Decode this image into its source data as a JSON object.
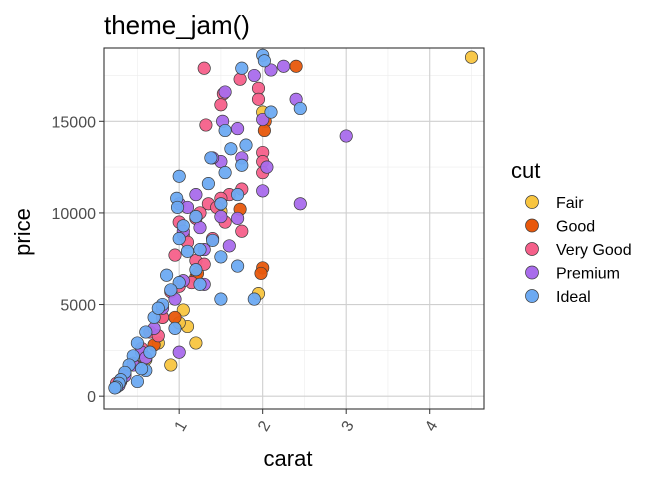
{
  "chart_data": {
    "type": "scatter",
    "title": "theme_jam()",
    "xlabel": "carat",
    "ylabel": "price",
    "xlim": [
      0.1,
      4.65
    ],
    "ylim": [
      -700,
      19000
    ],
    "x_ticks": [
      1,
      2,
      3,
      4
    ],
    "x_tick_labels": [
      "1",
      "2",
      "3",
      "4"
    ],
    "y_ticks": [
      0,
      5000,
      10000,
      15000
    ],
    "y_tick_labels": [
      "0",
      "5000",
      "10000",
      "15000"
    ],
    "grid": true,
    "legend": {
      "title": "cut",
      "position": "right"
    },
    "series": [
      {
        "name": "Fair",
        "color": "#F8C540",
        "points": [
          [
            4.5,
            18500
          ],
          [
            2.0,
            15500
          ],
          [
            1.95,
            5600
          ],
          [
            1.2,
            2900
          ],
          [
            0.9,
            1700
          ],
          [
            1.05,
            4700
          ],
          [
            1.1,
            3800
          ],
          [
            1.5,
            10100
          ],
          [
            0.75,
            2900
          ],
          [
            0.6,
            2000
          ],
          [
            1.0,
            4000
          ]
        ]
      },
      {
        "name": "Good",
        "color": "#E8580C",
        "points": [
          [
            2.4,
            18000
          ],
          [
            2.03,
            15000
          ],
          [
            2.02,
            14500
          ],
          [
            1.73,
            10200
          ],
          [
            2.0,
            7000
          ],
          [
            1.98,
            6700
          ],
          [
            1.2,
            6500
          ],
          [
            0.8,
            4300
          ],
          [
            1.22,
            6700
          ],
          [
            0.95,
            4300
          ],
          [
            0.7,
            2800
          ]
        ]
      },
      {
        "name": "Very Good",
        "color": "#F5608A",
        "points": [
          [
            1.3,
            17900
          ],
          [
            1.73,
            17300
          ],
          [
            1.95,
            16800
          ],
          [
            1.53,
            16500
          ],
          [
            1.95,
            16200
          ],
          [
            1.32,
            14800
          ],
          [
            2.0,
            13300
          ],
          [
            2.0,
            12800
          ],
          [
            2.0,
            12200
          ],
          [
            1.75,
            11300
          ],
          [
            1.6,
            11000
          ],
          [
            1.5,
            10800
          ],
          [
            1.35,
            10500
          ],
          [
            1.25,
            10000
          ],
          [
            1.2,
            9700
          ],
          [
            1.0,
            9500
          ],
          [
            1.05,
            8800
          ],
          [
            1.1,
            8400
          ],
          [
            1.4,
            8600
          ],
          [
            1.55,
            9500
          ],
          [
            1.75,
            9000
          ],
          [
            1.2,
            7400
          ],
          [
            1.15,
            6200
          ],
          [
            1.0,
            6000
          ],
          [
            0.9,
            5700
          ],
          [
            0.8,
            4300
          ],
          [
            0.65,
            3500
          ],
          [
            0.55,
            2600
          ],
          [
            0.45,
            1800
          ],
          [
            0.35,
            1200
          ],
          [
            0.3,
            900
          ],
          [
            0.25,
            700
          ],
          [
            1.45,
            10300
          ],
          [
            1.3,
            7200
          ],
          [
            0.75,
            3300
          ],
          [
            0.95,
            7700
          ],
          [
            1.5,
            15900
          ]
        ]
      },
      {
        "name": "Premium",
        "color": "#A96CEC",
        "points": [
          [
            2.25,
            18000
          ],
          [
            2.1,
            17800
          ],
          [
            1.9,
            17500
          ],
          [
            1.55,
            16600
          ],
          [
            2.4,
            16200
          ],
          [
            3.0,
            14200
          ],
          [
            2.45,
            10500
          ],
          [
            1.52,
            15000
          ],
          [
            1.7,
            14600
          ],
          [
            2.0,
            15100
          ],
          [
            2.05,
            12500
          ],
          [
            2.0,
            11200
          ],
          [
            1.75,
            13000
          ],
          [
            1.5,
            12800
          ],
          [
            1.4,
            13000
          ],
          [
            1.2,
            11000
          ],
          [
            1.0,
            10500
          ],
          [
            1.05,
            9000
          ],
          [
            1.5,
            9800
          ],
          [
            1.7,
            9700
          ],
          [
            1.6,
            8200
          ],
          [
            1.3,
            8000
          ],
          [
            1.05,
            6300
          ],
          [
            0.95,
            5300
          ],
          [
            0.8,
            4800
          ],
          [
            0.7,
            3700
          ],
          [
            0.55,
            2400
          ],
          [
            0.45,
            1700
          ],
          [
            0.35,
            1100
          ],
          [
            0.3,
            800
          ],
          [
            0.28,
            600
          ],
          [
            1.0,
            2400
          ],
          [
            1.25,
            9200
          ],
          [
            1.3,
            6100
          ],
          [
            1.1,
            10300
          ],
          [
            0.6,
            2100
          ]
        ]
      },
      {
        "name": "Ideal",
        "color": "#6DAAF2",
        "points": [
          [
            2.0,
            18600
          ],
          [
            1.75,
            17900
          ],
          [
            2.02,
            18300
          ],
          [
            2.45,
            15700
          ],
          [
            2.1,
            15500
          ],
          [
            1.55,
            14500
          ],
          [
            1.8,
            13700
          ],
          [
            1.62,
            13500
          ],
          [
            1.38,
            13000
          ],
          [
            1.55,
            12200
          ],
          [
            1.75,
            12600
          ],
          [
            0.97,
            10800
          ],
          [
            1.0,
            12000
          ],
          [
            1.35,
            11600
          ],
          [
            1.7,
            11000
          ],
          [
            1.5,
            10500
          ],
          [
            0.98,
            10300
          ],
          [
            1.2,
            9800
          ],
          [
            1.05,
            9300
          ],
          [
            1.0,
            8600
          ],
          [
            1.25,
            8000
          ],
          [
            1.5,
            7600
          ],
          [
            1.7,
            7100
          ],
          [
            1.2,
            6900
          ],
          [
            1.0,
            6200
          ],
          [
            0.9,
            5800
          ],
          [
            0.8,
            5000
          ],
          [
            0.7,
            4300
          ],
          [
            0.6,
            3500
          ],
          [
            0.5,
            2900
          ],
          [
            0.45,
            2200
          ],
          [
            0.4,
            1700
          ],
          [
            0.35,
            1300
          ],
          [
            0.3,
            900
          ],
          [
            0.28,
            700
          ],
          [
            0.25,
            500
          ],
          [
            0.23,
            450
          ],
          [
            0.6,
            1400
          ],
          [
            1.5,
            5300
          ],
          [
            1.9,
            5300
          ],
          [
            1.25,
            6100
          ],
          [
            0.75,
            4800
          ],
          [
            0.95,
            3700
          ],
          [
            1.4,
            8500
          ],
          [
            0.85,
            6600
          ],
          [
            0.55,
            1500
          ],
          [
            1.1,
            7900
          ],
          [
            0.65,
            2400
          ],
          [
            0.5,
            800
          ]
        ]
      }
    ]
  }
}
